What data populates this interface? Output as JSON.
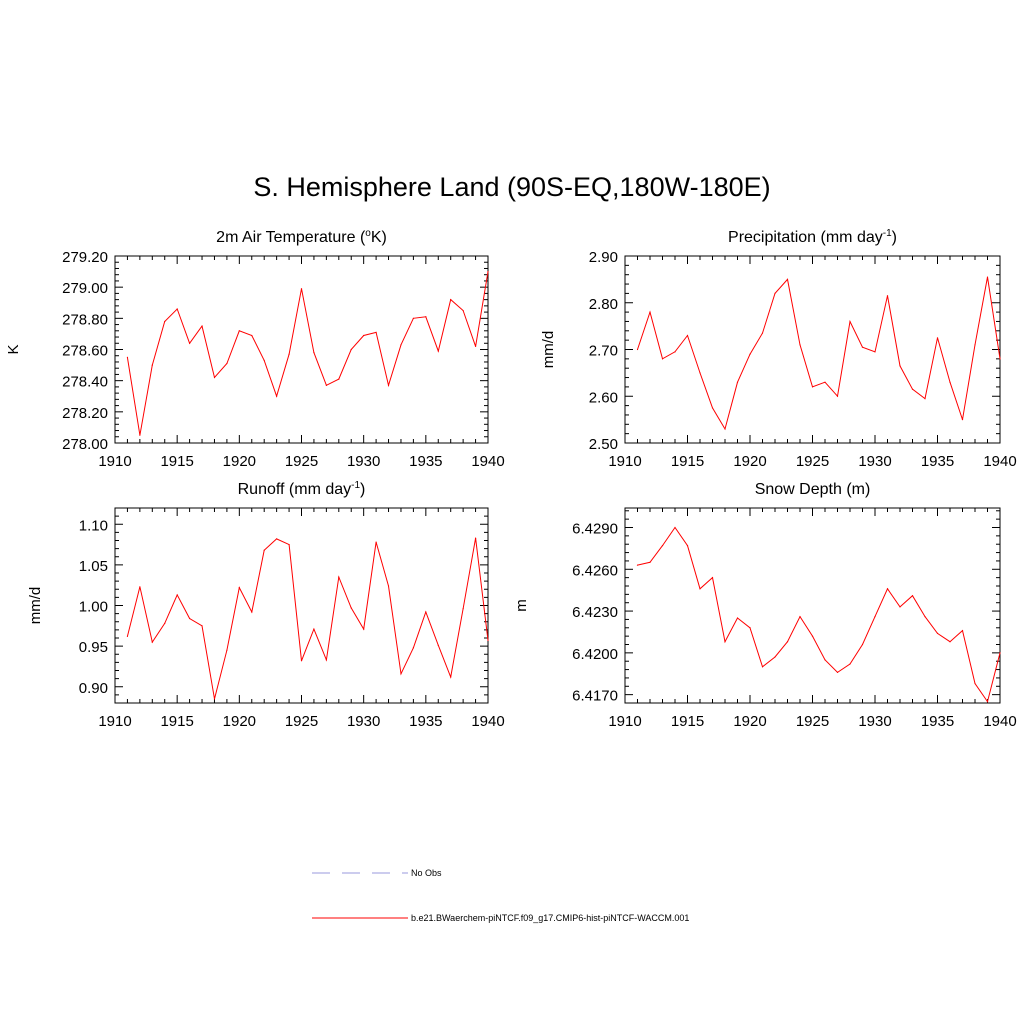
{
  "title": "S. Hemisphere Land (90S-EQ,180W-180E)",
  "colors": {
    "model_line": "#ff0000",
    "obs_line": "#9999dd",
    "axis": "#000000"
  },
  "legend": {
    "obs_label": "No Obs",
    "model_label": "b.e21.BWaerchem-piNTCF.f09_g17.CMIP6-hist-piNTCF-WACCM.001"
  },
  "chart_data": [
    {
      "type": "line",
      "title": "2m Air Temperature (",
      "title_sup": "o",
      "title_after": "K)",
      "ylabel": "K",
      "xlim": [
        1910,
        1940
      ],
      "ylim": [
        278.0,
        279.2
      ],
      "xticks": [
        "1910",
        "1915",
        "1920",
        "1925",
        "1930",
        "1935",
        "1940"
      ],
      "yticks": [
        "278.00",
        "278.20",
        "278.40",
        "278.60",
        "278.80",
        "279.00",
        "279.20"
      ],
      "x": [
        1911,
        1912,
        1913,
        1914,
        1915,
        1916,
        1917,
        1918,
        1919,
        1920,
        1921,
        1922,
        1923,
        1924,
        1925,
        1926,
        1927,
        1928,
        1929,
        1930,
        1931,
        1932,
        1933,
        1934,
        1935,
        1936,
        1937,
        1938,
        1939,
        1940
      ],
      "series": [
        {
          "values": [
            278.55,
            278.05,
            278.5,
            278.78,
            278.86,
            278.64,
            278.75,
            278.42,
            278.51,
            278.72,
            278.69,
            278.53,
            278.3,
            278.57,
            278.99,
            278.58,
            278.37,
            278.41,
            278.6,
            278.69,
            278.71,
            278.37,
            278.63,
            278.8,
            278.81,
            278.59,
            278.92,
            278.85,
            278.62,
            279.1
          ]
        }
      ]
    },
    {
      "type": "line",
      "title": "Precipitation (mm day",
      "title_sup": "-1",
      "title_after": ")",
      "ylabel": "mm/d",
      "xlim": [
        1910,
        1940
      ],
      "ylim": [
        2.5,
        2.9
      ],
      "xticks": [
        "1910",
        "1915",
        "1920",
        "1925",
        "1930",
        "1935",
        "1940"
      ],
      "yticks": [
        "2.50",
        "2.60",
        "2.70",
        "2.80",
        "2.90"
      ],
      "x": [
        1911,
        1912,
        1913,
        1914,
        1915,
        1916,
        1917,
        1918,
        1919,
        1920,
        1921,
        1922,
        1923,
        1924,
        1925,
        1926,
        1927,
        1928,
        1929,
        1930,
        1931,
        1932,
        1933,
        1934,
        1935,
        1936,
        1937,
        1938,
        1939,
        1940
      ],
      "series": [
        {
          "values": [
            2.7,
            2.78,
            2.68,
            2.695,
            2.73,
            2.65,
            2.575,
            2.53,
            2.63,
            2.69,
            2.735,
            2.82,
            2.85,
            2.71,
            2.62,
            2.63,
            2.6,
            2.76,
            2.705,
            2.695,
            2.815,
            2.665,
            2.615,
            2.595,
            2.725,
            2.63,
            2.55,
            2.71,
            2.855,
            2.68
          ]
        }
      ]
    },
    {
      "type": "line",
      "title": "Runoff (mm day",
      "title_sup": "-1",
      "title_after": ")",
      "ylabel": "mm/d",
      "xlim": [
        1910,
        1940
      ],
      "ylim": [
        0.88,
        1.12
      ],
      "xticks": [
        "1910",
        "1915",
        "1920",
        "1925",
        "1930",
        "1935",
        "1940"
      ],
      "yticks": [
        "0.90",
        "0.95",
        "1.00",
        "1.05",
        "1.10"
      ],
      "x": [
        1911,
        1912,
        1913,
        1914,
        1915,
        1916,
        1917,
        1918,
        1919,
        1920,
        1921,
        1922,
        1923,
        1924,
        1925,
        1926,
        1927,
        1928,
        1929,
        1930,
        1931,
        1932,
        1933,
        1934,
        1935,
        1936,
        1937,
        1938,
        1939,
        1940
      ],
      "series": [
        {
          "values": [
            0.962,
            1.023,
            0.955,
            0.978,
            1.013,
            0.984,
            0.975,
            0.885,
            0.945,
            1.022,
            0.992,
            1.068,
            1.082,
            1.075,
            0.932,
            0.971,
            0.933,
            1.035,
            0.997,
            0.971,
            1.078,
            1.024,
            0.916,
            0.948,
            0.992,
            0.951,
            0.912,
            0.996,
            1.083,
            0.957
          ]
        }
      ]
    },
    {
      "type": "line",
      "title": "Snow Depth (m)",
      "title_sup": "",
      "title_after": "",
      "ylabel": "m",
      "xlim": [
        1910,
        1940
      ],
      "ylim": [
        6.4164,
        6.4304
      ],
      "xticks": [
        "1910",
        "1915",
        "1920",
        "1925",
        "1930",
        "1935",
        "1940"
      ],
      "yticks": [
        "6.4170",
        "6.4200",
        "6.4230",
        "6.4260",
        "6.4290"
      ],
      "x": [
        1911,
        1912,
        1913,
        1914,
        1915,
        1916,
        1917,
        1918,
        1919,
        1920,
        1921,
        1922,
        1923,
        1924,
        1925,
        1926,
        1927,
        1928,
        1929,
        1930,
        1931,
        1932,
        1933,
        1934,
        1935,
        1936,
        1937,
        1938,
        1939,
        1940
      ],
      "series": [
        {
          "values": [
            6.4263,
            6.4265,
            6.4277,
            6.429,
            6.4277,
            6.4246,
            6.4254,
            6.4208,
            6.4225,
            6.4218,
            6.419,
            6.4197,
            6.4208,
            6.4226,
            6.4212,
            6.4195,
            6.4186,
            6.4192,
            6.4206,
            6.4226,
            6.4246,
            6.4233,
            6.4241,
            6.4226,
            6.4214,
            6.4208,
            6.4216,
            6.4178,
            6.4165,
            6.42
          ]
        }
      ]
    }
  ]
}
